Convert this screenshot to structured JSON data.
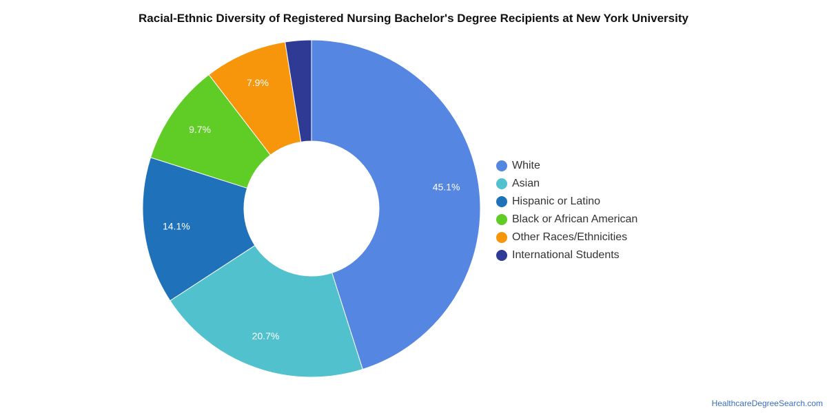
{
  "chart_data": {
    "type": "pie",
    "title": "Racial-Ethnic Diversity of Registered Nursing Bachelor's Degree Recipients at New York University",
    "categories": [
      "White",
      "Asian",
      "Hispanic or Latino",
      "Black or African American",
      "Other Races/Ethnicities",
      "International Students"
    ],
    "values": [
      45.1,
      20.7,
      14.1,
      9.7,
      7.9,
      2.5
    ],
    "data_labels": [
      "45.1%",
      "20.7%",
      "14.1%",
      "9.7%",
      "7.9%",
      ""
    ],
    "colors": [
      "#5486e2",
      "#51c1cd",
      "#1f72ba",
      "#5fcd26",
      "#f7960b",
      "#2e3a93"
    ],
    "donut": true,
    "legend_position": "right"
  },
  "credit": "HealthcareDegreeSearch.com"
}
